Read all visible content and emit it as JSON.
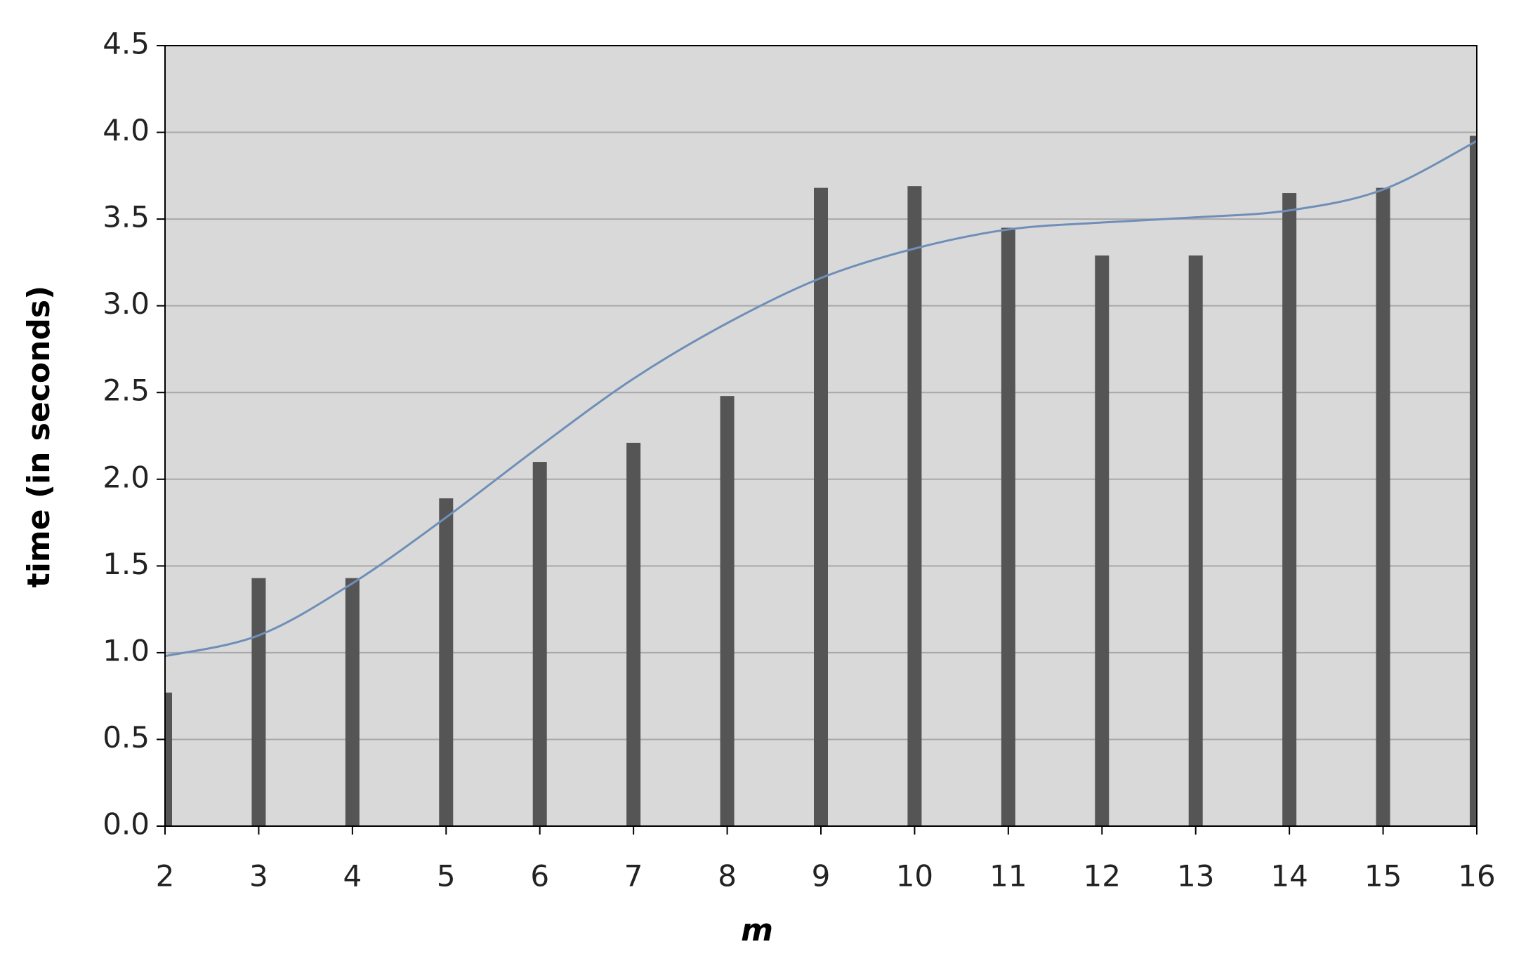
{
  "chart_data": {
    "type": "bar",
    "x_label": "m",
    "y_label": "time (in seconds)",
    "x": [
      2,
      3,
      4,
      5,
      6,
      7,
      8,
      9,
      10,
      11,
      12,
      13,
      14,
      15,
      16
    ],
    "series": [
      {
        "type": "bar",
        "color": "#555555",
        "values": [
          0.77,
          1.43,
          1.43,
          1.89,
          2.1,
          2.21,
          2.48,
          3.68,
          3.69,
          3.45,
          3.29,
          3.29,
          3.65,
          3.68,
          3.98
        ]
      },
      {
        "type": "line",
        "color": "#6f8fb8",
        "values": [
          0.98,
          1.1,
          1.4,
          1.78,
          2.19,
          2.58,
          2.9,
          3.16,
          3.33,
          3.44,
          3.48,
          3.51,
          3.55,
          3.67,
          3.95
        ]
      }
    ],
    "xlim": [
      2,
      16
    ],
    "xticks": [
      2,
      3,
      4,
      5,
      6,
      7,
      8,
      9,
      10,
      11,
      12,
      13,
      14,
      15,
      16
    ],
    "ylim": [
      0,
      4.5
    ],
    "yticks": [
      {
        "value": 0,
        "label": "0.0"
      },
      0.5,
      {
        "value": 1,
        "label": "1.0"
      },
      1.5,
      {
        "value": 2,
        "label": "2.0"
      },
      2.5,
      {
        "value": 3,
        "label": "3.0"
      },
      3.5,
      {
        "value": 4,
        "label": "4.0"
      },
      4.5
    ],
    "grid": true,
    "background": "#d9d9d9"
  }
}
